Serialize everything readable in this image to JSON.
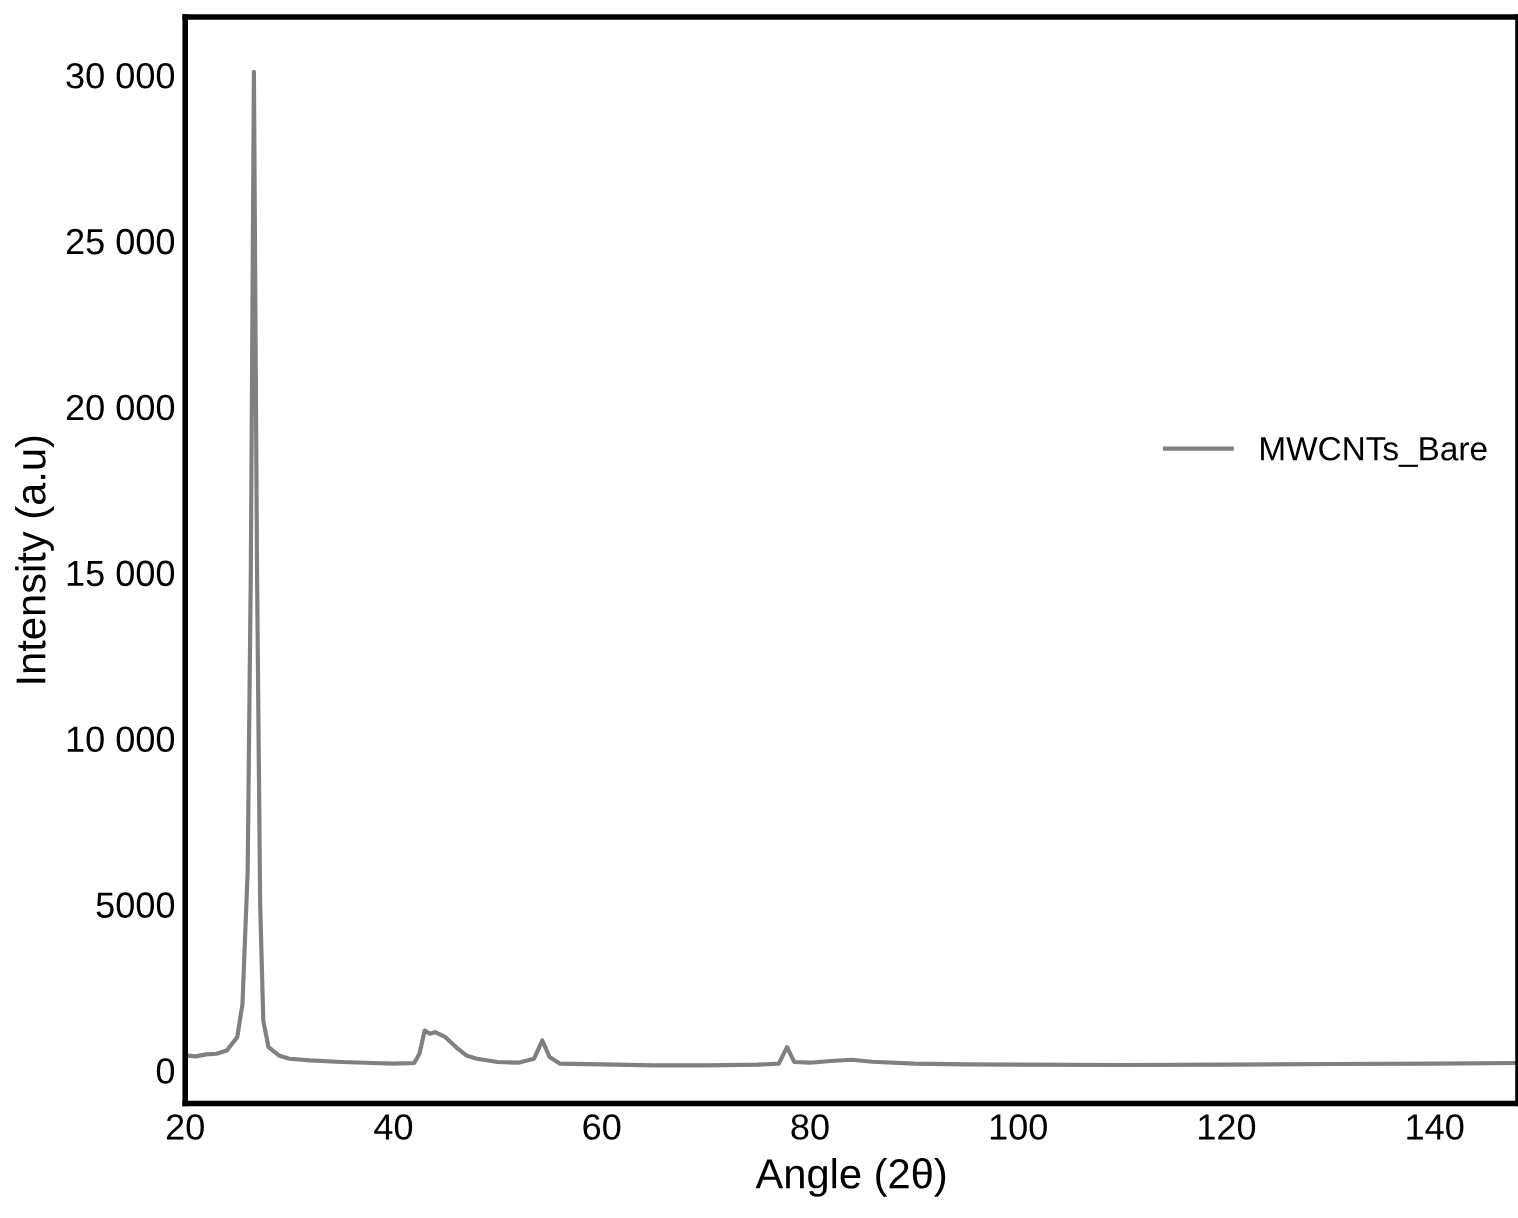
{
  "chart_data": {
    "type": "line",
    "xlabel": "Angle (2θ)",
    "ylabel": "Intensity (a.u)",
    "xlim": [
      20,
      148
    ],
    "xticks": [
      20,
      40,
      60,
      80,
      100,
      120,
      140
    ],
    "ylim": [
      -1000,
      31750
    ],
    "yticks": [
      0,
      5000,
      {
        "value": 10000,
        "label": "10 000"
      },
      {
        "value": 15000,
        "label": "15 000"
      },
      {
        "value": 20000,
        "label": "20 000"
      },
      {
        "value": 25000,
        "label": "25 000"
      },
      {
        "value": 30000,
        "label": "30 000"
      }
    ],
    "grid": false,
    "legend": "right",
    "series": [
      {
        "name": "MWCNTs_Bare",
        "color": "#808080",
        "x": [
          20,
          21,
          22,
          23,
          24,
          25,
          25.5,
          26,
          26.3,
          26.6,
          26.9,
          27.2,
          27.5,
          28,
          29,
          30,
          32,
          35,
          38,
          40,
          42,
          42.5,
          43,
          43.5,
          44,
          45,
          46,
          47,
          48,
          50,
          52,
          53.5,
          54.3,
          55,
          56,
          60,
          65,
          70,
          75,
          77,
          77.8,
          78.5,
          80,
          82,
          84,
          86,
          90,
          95,
          100,
          110,
          120,
          130,
          140,
          148
        ],
        "values": [
          450,
          420,
          480,
          500,
          600,
          1000,
          2000,
          6000,
          15000,
          30100,
          15000,
          5000,
          1500,
          700,
          450,
          350,
          300,
          250,
          220,
          200,
          220,
          500,
          1200,
          1100,
          1150,
          1000,
          700,
          450,
          350,
          250,
          230,
          350,
          900,
          400,
          200,
          180,
          150,
          150,
          170,
          200,
          700,
          250,
          230,
          280,
          320,
          260,
          200,
          180,
          170,
          160,
          170,
          190,
          200,
          220
        ]
      }
    ]
  }
}
